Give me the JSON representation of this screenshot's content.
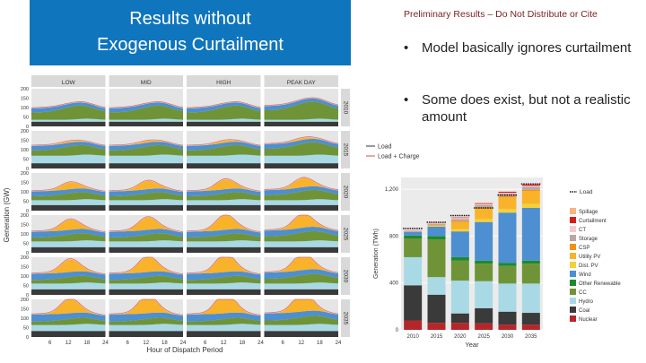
{
  "slide": {
    "title_line1": "Results without",
    "title_line2": "Exogenous Curtailment",
    "preliminary_note": "Preliminary Results – Do Not Distribute or Cite",
    "bullets": [
      "Model basically ignores curtailment",
      "Some does exist, but not a realistic amount"
    ],
    "bullet_glyph": "•",
    "colors": {
      "title_bg": "#0f75bd",
      "note": "#7a1f1f"
    }
  },
  "chart_data": [
    {
      "type": "area",
      "columns": [
        "LOW",
        "MID",
        "HIGH",
        "PEAK DAY"
      ],
      "rows": [
        "2010",
        "2015",
        "2020",
        "2025",
        "2030",
        "2035"
      ],
      "xlabel": "Hour of Dispatch Period",
      "ylabel": "Generation (GW)",
      "x_ticks": [
        "6",
        "12",
        "18",
        "24"
      ],
      "y_ticks": [
        "0",
        "50",
        "100",
        "150",
        "200"
      ],
      "xlim": [
        0,
        24
      ],
      "ylim": [
        0,
        200
      ],
      "legend": [
        "Load",
        "Load + Charge"
      ],
      "legend_position": "right"
    },
    {
      "type": "bar",
      "stacked": true,
      "categories": [
        "2010",
        "2015",
        "2020",
        "2025",
        "2030",
        "2035"
      ],
      "xlabel": "Year",
      "ylabel": "Generation (TWh)",
      "y_ticks": [
        "0",
        "400",
        "800",
        "1,200"
      ],
      "ylim": [
        0,
        1300
      ],
      "load_label": "Load",
      "load": [
        865,
        918,
        975,
        1040,
        1150,
        1245
      ],
      "legend_position": "right",
      "series": [
        {
          "name": "Nuclear",
          "color": "#b5262b",
          "values": [
            80,
            60,
            60,
            55,
            45,
            45
          ]
        },
        {
          "name": "Coal",
          "color": "#3a3a3a",
          "values": [
            300,
            240,
            80,
            130,
            110,
            100
          ]
        },
        {
          "name": "Hydro",
          "color": "#a9d9e4",
          "values": [
            240,
            150,
            280,
            230,
            240,
            250
          ]
        },
        {
          "name": "CC",
          "color": "#6f9438",
          "values": [
            160,
            320,
            170,
            150,
            150,
            170
          ]
        },
        {
          "name": "Other Renewable",
          "color": "#1d8a2d",
          "values": [
            25,
            30,
            30,
            25,
            25,
            25
          ]
        },
        {
          "name": "Wind",
          "color": "#4d8fd0",
          "values": [
            30,
            80,
            220,
            330,
            430,
            450
          ]
        },
        {
          "name": "Dist. PV",
          "color": "#f4d03a",
          "values": [
            0,
            5,
            20,
            25,
            30,
            35
          ]
        },
        {
          "name": "Utility PV",
          "color": "#f8b32b",
          "values": [
            0,
            10,
            60,
            90,
            100,
            110
          ]
        },
        {
          "name": "CSP",
          "color": "#f39212",
          "values": [
            0,
            0,
            10,
            10,
            10,
            10
          ]
        },
        {
          "name": "Storage",
          "color": "#b9a6a6",
          "values": [
            10,
            10,
            15,
            20,
            20,
            25
          ]
        },
        {
          "name": "CT",
          "color": "#f7c8c8",
          "values": [
            10,
            10,
            10,
            10,
            10,
            10
          ]
        },
        {
          "name": "Curtailment",
          "color": "#d7191c",
          "values": [
            0,
            2,
            4,
            6,
            8,
            10
          ]
        },
        {
          "name": "Spillage",
          "color": "#f9b381",
          "values": [
            0,
            1,
            2,
            2,
            2,
            2
          ]
        }
      ]
    }
  ]
}
